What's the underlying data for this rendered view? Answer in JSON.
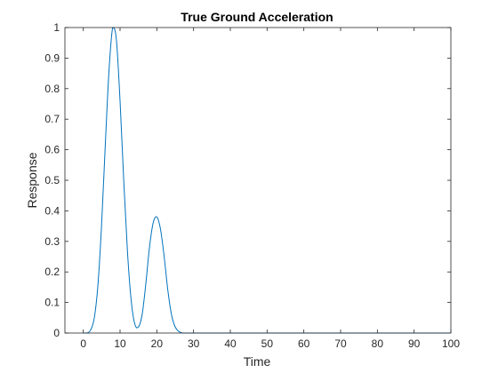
{
  "chart_data": {
    "type": "line",
    "title": "True Ground Acceleration",
    "xlabel": "Time",
    "ylabel": "Response",
    "xlim": [
      -5,
      100
    ],
    "ylim": [
      0,
      1
    ],
    "grid": false,
    "legend": "none",
    "xticks": [
      "0",
      "10",
      "20",
      "30",
      "40",
      "50",
      "60",
      "70",
      "80",
      "90",
      "100"
    ],
    "yticks": [
      "0",
      "0.1",
      "0.2",
      "0.3",
      "0.4",
      "0.5",
      "0.6",
      "0.7",
      "0.8",
      "0.9",
      "1"
    ],
    "series": [
      {
        "color": "#0072bd",
        "x": [
          0,
          1,
          2,
          3,
          4,
          5,
          6,
          7,
          8,
          9,
          10,
          11,
          12,
          13,
          14,
          15,
          16,
          17,
          18,
          19,
          20,
          21,
          22,
          23,
          24,
          25,
          26,
          27,
          28,
          30,
          40,
          50,
          60,
          70,
          80,
          90,
          100
        ],
        "y": [
          0.0,
          0.0,
          0.01,
          0.05,
          0.16,
          0.36,
          0.62,
          0.86,
          1.0,
          0.96,
          0.76,
          0.5,
          0.27,
          0.11,
          0.03,
          0.02,
          0.06,
          0.16,
          0.28,
          0.36,
          0.38,
          0.34,
          0.25,
          0.14,
          0.06,
          0.02,
          0.005,
          0.0,
          0.0,
          0.0,
          0.0,
          0.0,
          0.0,
          0.0,
          0.0,
          0.0,
          0.0
        ]
      }
    ]
  }
}
